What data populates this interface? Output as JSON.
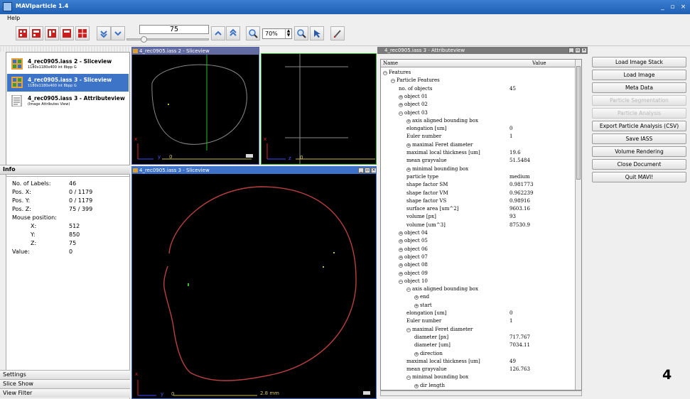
{
  "window": {
    "title": "MAVIparticle 1.4"
  },
  "menu": {
    "help": "Help"
  },
  "toolbar": {
    "buttons": [
      "layout-1-icon",
      "layout-2-icon",
      "layout-3-icon",
      "layout-4-icon",
      "layout-5-icon",
      "slice-down-icon",
      "slice-down2-icon",
      "slice-up-icon",
      "slice-up2-icon",
      "zoom-in-icon",
      "zoom-out-icon",
      "pointer-icon",
      "pen-icon"
    ],
    "slice_value": "75",
    "slice_fraction": 0.188,
    "zoom": "70%"
  },
  "documents": [
    {
      "name": "4_rec0905.iass 2 - Sliceview",
      "info": "1180x1180x400 int 8bpp G"
    },
    {
      "name": "4_rec0905.iass 3 - Sliceview",
      "info": "1180x1180x400 int 8bpp G"
    },
    {
      "name": "4_rec0905.iass 3 - Attributeview",
      "info": "(Image Attributes View)"
    }
  ],
  "info": {
    "header": "Info",
    "rows": [
      {
        "label": "No. of Labels:",
        "value": "46"
      },
      {
        "label": "Pos. X:",
        "value": "0 / 1179"
      },
      {
        "label": "Pos. Y:",
        "value": "0 / 1179"
      },
      {
        "label": "Pos. Z:",
        "value": "75 / 399"
      },
      {
        "label": "Mouse position:",
        "value": ""
      },
      {
        "label": "X:",
        "value": "512"
      },
      {
        "label": "Y:",
        "value": "850"
      },
      {
        "label": "Z:",
        "value": "75"
      },
      {
        "label": "Value:",
        "value": "0"
      }
    ]
  },
  "accordion": [
    "Settings",
    "Slice Show",
    "View Filter"
  ],
  "viewers": {
    "top_left_title": "4_rec0905.iass 2 - Sliceview",
    "bottom_title": "4_rec0905.iass 3 - Sliceview",
    "scale_label": "2.8 mm",
    "axis_y": "y",
    "axis_z": "z",
    "axis_x": "x",
    "scale_zero": "0"
  },
  "attributes": {
    "title": "4_rec0905.iass 3 - Attributeview",
    "col_name": "Name",
    "col_value": "Value",
    "rows": [
      {
        "name": "Features",
        "value": "",
        "exp": "-"
      },
      {
        "name": "Particle Features",
        "value": "",
        "exp": "-"
      },
      {
        "name": "no. of objects",
        "value": "45",
        "exp": ""
      },
      {
        "name": "object 01",
        "value": "",
        "exp": "+"
      },
      {
        "name": "object 02",
        "value": "",
        "exp": "+"
      },
      {
        "name": "object 03",
        "value": "",
        "exp": "-"
      },
      {
        "name": "axis aligned bounding box",
        "value": "",
        "exp": "+"
      },
      {
        "name": "elongation [um]",
        "value": "0",
        "exp": ""
      },
      {
        "name": "Euler number",
        "value": "1",
        "exp": ""
      },
      {
        "name": "maximal Feret diameter",
        "value": "",
        "exp": "+"
      },
      {
        "name": "maximal local thickness [um]",
        "value": "19.6",
        "exp": ""
      },
      {
        "name": "mean grayvalue",
        "value": "51.5484",
        "exp": ""
      },
      {
        "name": "minimal bounding box",
        "value": "",
        "exp": "+"
      },
      {
        "name": "particle type",
        "value": "medium",
        "exp": ""
      },
      {
        "name": "shape factor SM",
        "value": "0.981773",
        "exp": ""
      },
      {
        "name": "shape factor VM",
        "value": "0.962239",
        "exp": ""
      },
      {
        "name": "shape factor VS",
        "value": "0.98916",
        "exp": ""
      },
      {
        "name": "surface area [um^2]",
        "value": "9603.16",
        "exp": ""
      },
      {
        "name": "volume [px]",
        "value": "93",
        "exp": ""
      },
      {
        "name": "volume [um^3]",
        "value": "87530.9",
        "exp": ""
      },
      {
        "name": "object 04",
        "value": "",
        "exp": "+"
      },
      {
        "name": "object 05",
        "value": "",
        "exp": "+"
      },
      {
        "name": "object 06",
        "value": "",
        "exp": "+"
      },
      {
        "name": "object 07",
        "value": "",
        "exp": "+"
      },
      {
        "name": "object 08",
        "value": "",
        "exp": "+"
      },
      {
        "name": "object 09",
        "value": "",
        "exp": "+"
      },
      {
        "name": "object 10",
        "value": "",
        "exp": "-"
      },
      {
        "name": "axis aligned bounding box",
        "value": "",
        "exp": "-"
      },
      {
        "name": "end",
        "value": "",
        "exp": "+"
      },
      {
        "name": "start",
        "value": "",
        "exp": "+"
      },
      {
        "name": "elongation [um]",
        "value": "0",
        "exp": ""
      },
      {
        "name": "Euler number",
        "value": "1",
        "exp": ""
      },
      {
        "name": "maximal Feret diameter",
        "value": "",
        "exp": "-"
      },
      {
        "name": "diameter [px]",
        "value": "717.767",
        "exp": ""
      },
      {
        "name": "diameter [um]",
        "value": "7034.11",
        "exp": ""
      },
      {
        "name": "direction",
        "value": "",
        "exp": "+"
      },
      {
        "name": "maximal local thickness [um]",
        "value": "49",
        "exp": ""
      },
      {
        "name": "mean grayvalue",
        "value": "126.763",
        "exp": ""
      },
      {
        "name": "minimal bounding box",
        "value": "",
        "exp": "-"
      },
      {
        "name": "dir length",
        "value": "",
        "exp": "+"
      }
    ]
  },
  "actions": [
    {
      "label": "Load Image Stack",
      "enabled": true
    },
    {
      "label": "Load Image",
      "enabled": true
    },
    {
      "label": "Meta Data",
      "enabled": true
    },
    {
      "label": "Particle Segmentation",
      "enabled": false
    },
    {
      "label": "Particle Analysis",
      "enabled": false
    },
    {
      "label": "Export Particle Analysis (CSV)",
      "enabled": true
    },
    {
      "label": "Save IASS",
      "enabled": true
    },
    {
      "label": "Volume Rendering",
      "enabled": true
    },
    {
      "label": "Close Document",
      "enabled": true
    },
    {
      "label": "Quit MAVI!",
      "enabled": true
    }
  ],
  "page_number": "4"
}
